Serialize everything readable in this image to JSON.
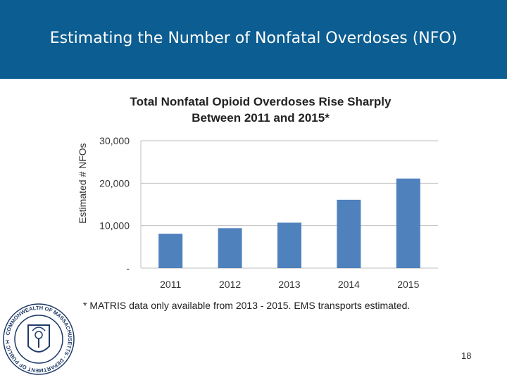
{
  "header": {
    "title": "Estimating the Number of Nonfatal Overdoses (NFO)"
  },
  "colors": {
    "header_bg": "#0c5d91",
    "bar": "#4f81bd",
    "grid": "#bfbfbf"
  },
  "chart_data": {
    "type": "bar",
    "title_lines": [
      "Total Nonfatal Opioid Overdoses Rise Sharply",
      "Between 2011 and 2015*"
    ],
    "ylabel": "Estimated # NFOs",
    "xlabel": "",
    "categories": [
      "2011",
      "2012",
      "2013",
      "2014",
      "2015"
    ],
    "values": [
      8100,
      9400,
      10700,
      16100,
      21100
    ],
    "ylim": [
      0,
      30000
    ],
    "yticks": [
      0,
      10000,
      20000,
      30000
    ],
    "ytick_labels": [
      "-",
      "10,000",
      "20,000",
      "30,000"
    ],
    "grid": true,
    "legend": "none"
  },
  "footnote": "* MATRIS data only available from 2013 - 2015. EMS transports estimated.",
  "seal": {
    "text": "COMMONWEALTH OF MASSACHUSETTS · DEPARTMENT OF PUBLIC HEALTH",
    "icon": "state-seal-logo"
  },
  "page_number": "18"
}
